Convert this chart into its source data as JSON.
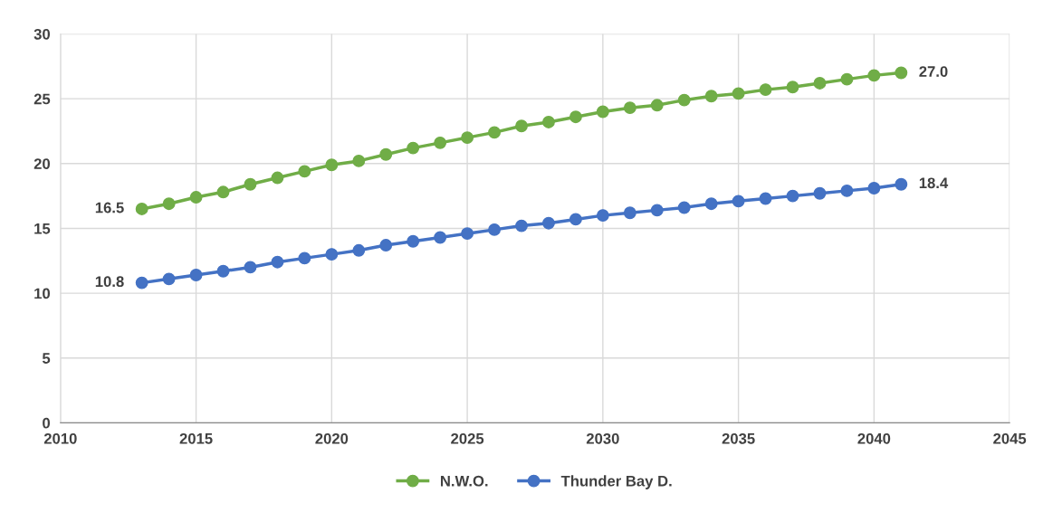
{
  "chart_data": {
    "type": "line",
    "x": [
      2013,
      2014,
      2015,
      2016,
      2017,
      2018,
      2019,
      2020,
      2021,
      2022,
      2023,
      2024,
      2025,
      2026,
      2027,
      2028,
      2029,
      2030,
      2031,
      2032,
      2033,
      2034,
      2035,
      2036,
      2037,
      2038,
      2039,
      2040,
      2041
    ],
    "series": [
      {
        "name": "N.W.O.",
        "color": "#70ad47",
        "values": [
          16.5,
          16.9,
          17.4,
          17.8,
          18.4,
          18.9,
          19.4,
          19.9,
          20.2,
          20.7,
          21.2,
          21.6,
          22.0,
          22.4,
          22.9,
          23.2,
          23.6,
          24.0,
          24.3,
          24.5,
          24.9,
          25.2,
          25.4,
          25.7,
          25.9,
          26.2,
          26.5,
          26.8,
          27.0
        ],
        "value_labels": [
          "16.5",
          null,
          null,
          null,
          null,
          null,
          null,
          null,
          null,
          null,
          null,
          null,
          null,
          null,
          null,
          null,
          null,
          null,
          null,
          null,
          null,
          null,
          null,
          null,
          null,
          null,
          null,
          null,
          "27.0"
        ]
      },
      {
        "name": "Thunder Bay D.",
        "color": "#4472c4",
        "values": [
          10.8,
          11.1,
          11.4,
          11.7,
          12.0,
          12.4,
          12.7,
          13.0,
          13.3,
          13.7,
          14.0,
          14.3,
          14.6,
          14.9,
          15.2,
          15.4,
          15.7,
          16.0,
          16.2,
          16.4,
          16.6,
          16.9,
          17.1,
          17.3,
          17.5,
          17.7,
          17.9,
          18.1,
          18.4
        ],
        "value_labels": [
          "10.8",
          null,
          null,
          null,
          null,
          null,
          null,
          null,
          null,
          null,
          null,
          null,
          null,
          null,
          null,
          null,
          null,
          null,
          null,
          null,
          null,
          null,
          null,
          null,
          null,
          null,
          null,
          null,
          "18.4"
        ]
      }
    ],
    "xlim": [
      2010,
      2045
    ],
    "xticks": [
      2010,
      2015,
      2020,
      2025,
      2030,
      2035,
      2040,
      2045
    ],
    "ylim": [
      0,
      30
    ],
    "yticks": [
      0,
      5,
      10,
      15,
      20,
      25,
      30
    ],
    "grid": true,
    "legend": "bottom",
    "marker": "circle",
    "line_style": "solid"
  }
}
